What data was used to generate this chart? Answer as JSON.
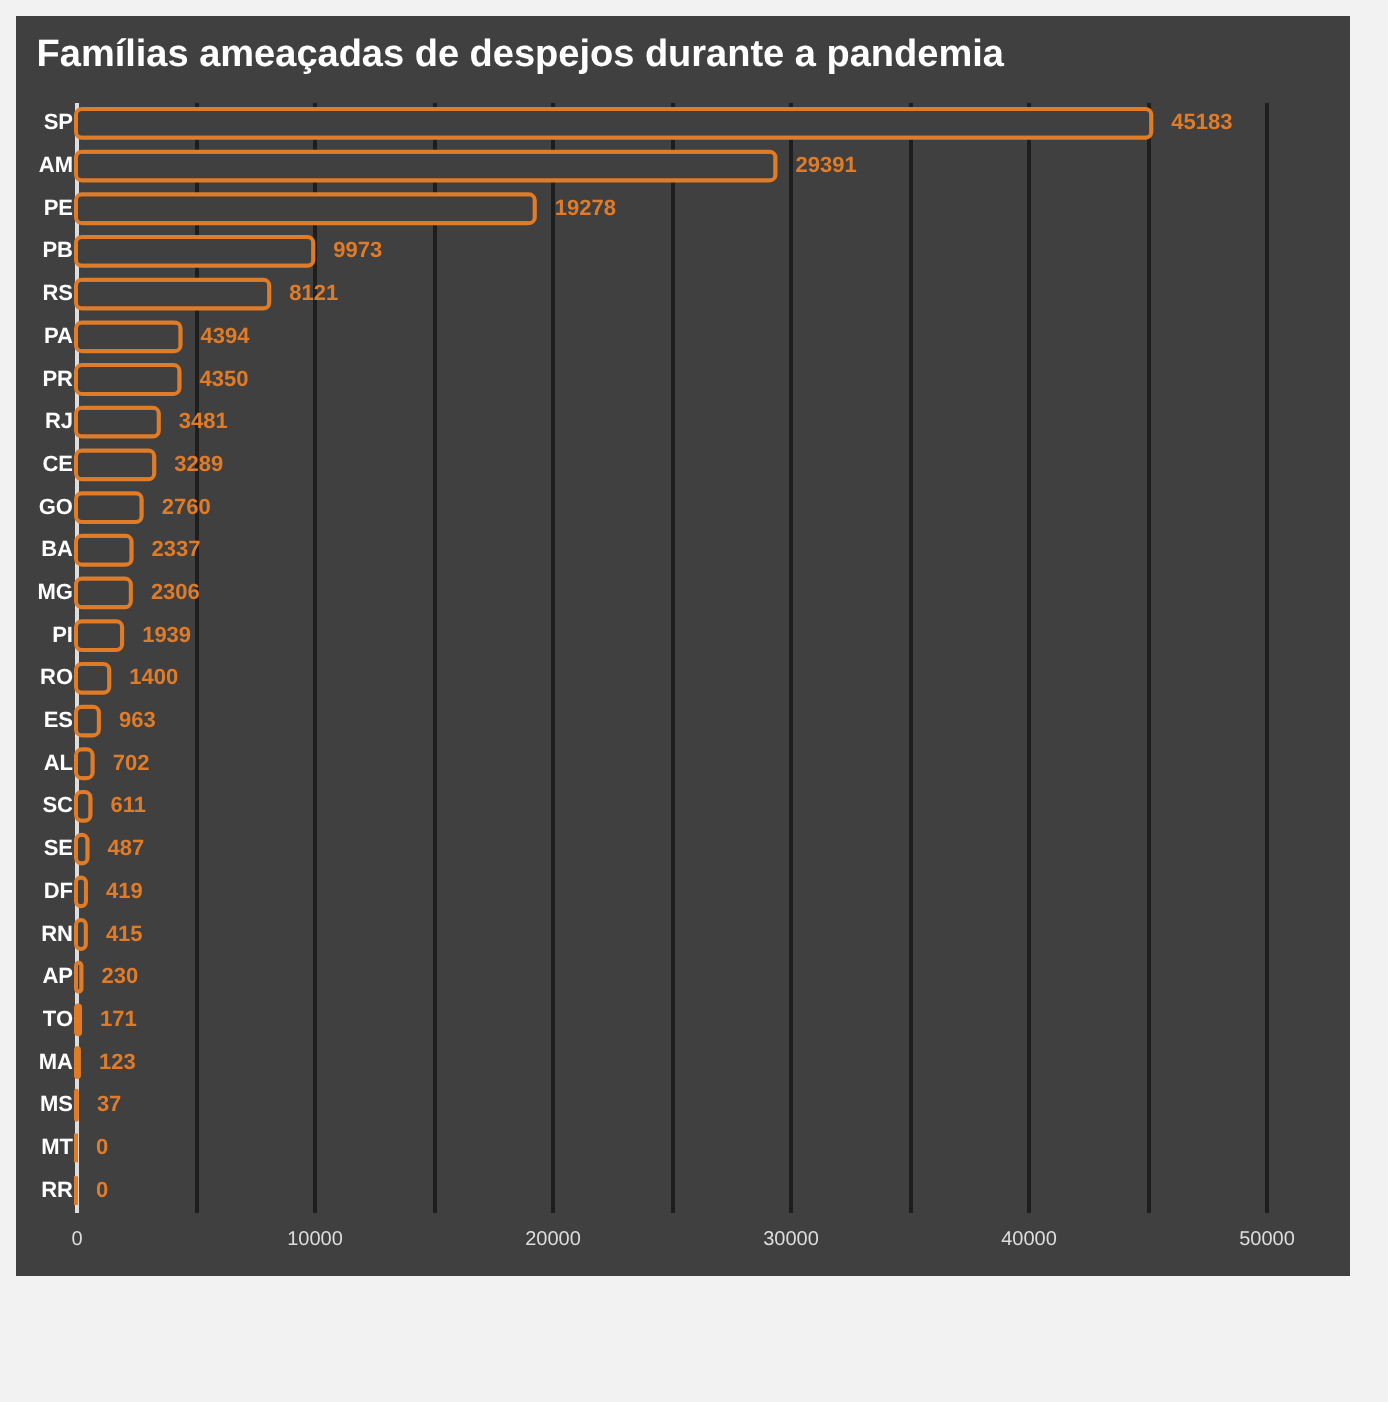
{
  "chart_data": {
    "type": "bar",
    "orientation": "horizontal",
    "title": "Famílias ameaçadas de despejos durante a pandemia",
    "categories": [
      "SP",
      "AM",
      "PE",
      "PB",
      "RS",
      "PA",
      "PR",
      "RJ",
      "CE",
      "GO",
      "BA",
      "MG",
      "PI",
      "RO",
      "ES",
      "AL",
      "SC",
      "SE",
      "DF",
      "RN",
      "AP",
      "TO",
      "MA",
      "MS",
      "MT",
      "RR"
    ],
    "values": [
      45183,
      29391,
      19278,
      9973,
      8121,
      4394,
      4350,
      3481,
      3289,
      2760,
      2337,
      2306,
      1939,
      1400,
      963,
      702,
      611,
      487,
      419,
      415,
      230,
      171,
      123,
      37,
      0,
      0
    ],
    "color": "#e07b28",
    "xlim": [
      0,
      50000
    ],
    "xticks": [
      0,
      {
        "value": 5000,
        "label": null
      },
      10000,
      {
        "value": 15000,
        "label": null
      },
      20000,
      {
        "value": 25000,
        "label": null
      },
      30000,
      {
        "value": 35000,
        "label": null
      },
      40000,
      {
        "value": 45000,
        "label": null
      },
      50000
    ],
    "grid": "x",
    "data_labels": true
  }
}
